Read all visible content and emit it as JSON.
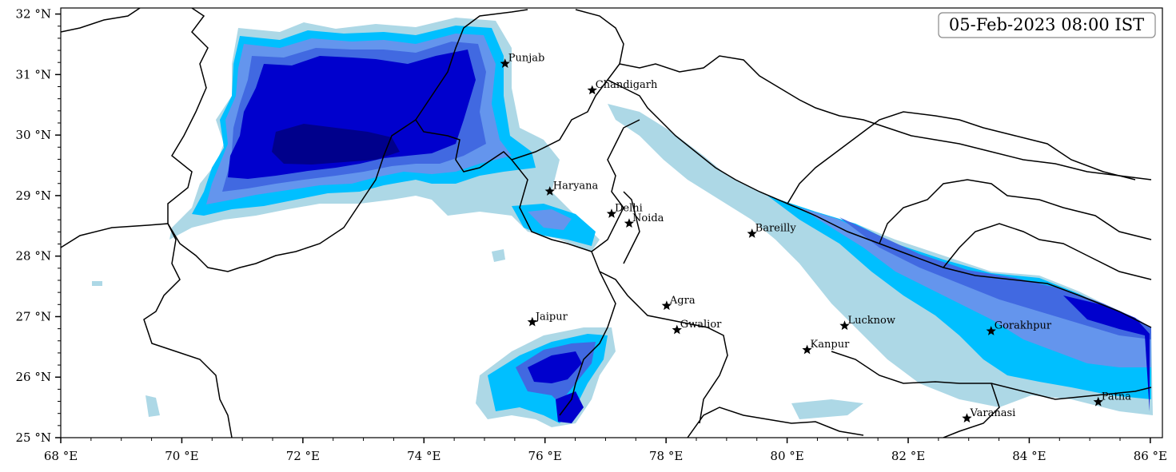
{
  "map": {
    "timestamp": "05-Feb-2023 08:00 IST",
    "lon_range": [
      68,
      86.2
    ],
    "lat_range": [
      25,
      32.1
    ],
    "x_ticks": [
      {
        "value": 68,
        "label": "68 °E"
      },
      {
        "value": 70,
        "label": "70 °E"
      },
      {
        "value": 72,
        "label": "72 °E"
      },
      {
        "value": 74,
        "label": "74 °E"
      },
      {
        "value": 76,
        "label": "76 °E"
      },
      {
        "value": 78,
        "label": "78 °E"
      },
      {
        "value": 80,
        "label": "80 °E"
      },
      {
        "value": 82,
        "label": "82 °E"
      },
      {
        "value": 84,
        "label": "84 °E"
      },
      {
        "value": 86,
        "label": "86 °E"
      }
    ],
    "y_ticks": [
      {
        "value": 25,
        "label": "25 °N"
      },
      {
        "value": 26,
        "label": "26 °N"
      },
      {
        "value": 27,
        "label": "27 °N"
      },
      {
        "value": 28,
        "label": "28 °N"
      },
      {
        "value": 29,
        "label": "29 °N"
      },
      {
        "value": 30,
        "label": "30 °N"
      },
      {
        "value": 31,
        "label": "31 °N"
      },
      {
        "value": 32,
        "label": "32 °N"
      }
    ],
    "cities": [
      {
        "name": "Punjab",
        "lon": 75.34,
        "lat": 31.18
      },
      {
        "name": "Chandigarh",
        "lon": 76.78,
        "lat": 30.74
      },
      {
        "name": "Haryana",
        "lon": 76.08,
        "lat": 29.07
      },
      {
        "name": "Delhi",
        "lon": 77.1,
        "lat": 28.7
      },
      {
        "name": "Noida",
        "lon": 77.39,
        "lat": 28.54
      },
      {
        "name": "Bareilly",
        "lon": 79.42,
        "lat": 28.37
      },
      {
        "name": "Agra",
        "lon": 78.01,
        "lat": 27.18
      },
      {
        "name": "Jaipur",
        "lon": 75.79,
        "lat": 26.91
      },
      {
        "name": "Gwalior",
        "lon": 78.18,
        "lat": 26.78
      },
      {
        "name": "Lucknow",
        "lon": 80.95,
        "lat": 26.85
      },
      {
        "name": "Kanpur",
        "lon": 80.33,
        "lat": 26.45
      },
      {
        "name": "Gorakhpur",
        "lon": 83.37,
        "lat": 26.76
      },
      {
        "name": "Patna",
        "lon": 85.14,
        "lat": 25.59
      },
      {
        "name": "Varanasi",
        "lon": 82.97,
        "lat": 25.32
      }
    ],
    "fog_colors": {
      "level1": "#add8e6",
      "level2": "#00bfff",
      "level3": "#6495ed",
      "level4": "#4169e1",
      "level5": "#0000cd",
      "level6": "#00008b"
    }
  }
}
